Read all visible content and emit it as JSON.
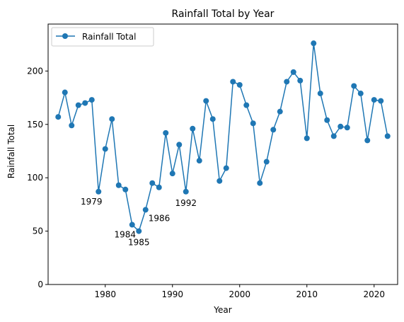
{
  "chart_data": {
    "type": "line",
    "title": "Rainfall Total by Year",
    "xlabel": "Year",
    "ylabel": "Rainfall Total",
    "xlim": [
      1971.5,
      2023.5
    ],
    "ylim": [
      0,
      244
    ],
    "xticks": [
      1980,
      1990,
      2000,
      2010,
      2020
    ],
    "yticks": [
      0,
      50,
      100,
      150,
      200
    ],
    "grid": false,
    "legend_position": "top-left",
    "series": [
      {
        "name": "Rainfall Total",
        "color": "#1f77b4",
        "marker": "circle",
        "points": [
          {
            "x": 1973,
            "y": 157
          },
          {
            "x": 1974,
            "y": 180
          },
          {
            "x": 1975,
            "y": 149
          },
          {
            "x": 1976,
            "y": 168
          },
          {
            "x": 1977,
            "y": 170
          },
          {
            "x": 1978,
            "y": 173
          },
          {
            "x": 1979,
            "y": 87
          },
          {
            "x": 1980,
            "y": 127
          },
          {
            "x": 1981,
            "y": 155
          },
          {
            "x": 1982,
            "y": 93
          },
          {
            "x": 1983,
            "y": 89
          },
          {
            "x": 1984,
            "y": 56
          },
          {
            "x": 1985,
            "y": 50
          },
          {
            "x": 1986,
            "y": 70
          },
          {
            "x": 1987,
            "y": 95
          },
          {
            "x": 1988,
            "y": 91
          },
          {
            "x": 1989,
            "y": 142
          },
          {
            "x": 1990,
            "y": 104
          },
          {
            "x": 1991,
            "y": 131
          },
          {
            "x": 1992,
            "y": 87
          },
          {
            "x": 1993,
            "y": 146
          },
          {
            "x": 1994,
            "y": 116
          },
          {
            "x": 1995,
            "y": 172
          },
          {
            "x": 1996,
            "y": 155
          },
          {
            "x": 1997,
            "y": 97
          },
          {
            "x": 1998,
            "y": 109
          },
          {
            "x": 1999,
            "y": 190
          },
          {
            "x": 2000,
            "y": 187
          },
          {
            "x": 2001,
            "y": 168
          },
          {
            "x": 2002,
            "y": 151
          },
          {
            "x": 2003,
            "y": 95
          },
          {
            "x": 2004,
            "y": 115
          },
          {
            "x": 2005,
            "y": 145
          },
          {
            "x": 2006,
            "y": 162
          },
          {
            "x": 2007,
            "y": 190
          },
          {
            "x": 2008,
            "y": 199
          },
          {
            "x": 2009,
            "y": 191
          },
          {
            "x": 2010,
            "y": 137
          },
          {
            "x": 2011,
            "y": 226
          },
          {
            "x": 2012,
            "y": 179
          },
          {
            "x": 2013,
            "y": 154
          },
          {
            "x": 2014,
            "y": 139
          },
          {
            "x": 2015,
            "y": 148
          },
          {
            "x": 2016,
            "y": 147
          },
          {
            "x": 2017,
            "y": 186
          },
          {
            "x": 2018,
            "y": 179
          },
          {
            "x": 2019,
            "y": 135
          },
          {
            "x": 2020,
            "y": 173
          },
          {
            "x": 2021,
            "y": 172
          },
          {
            "x": 2022,
            "y": 139
          }
        ]
      }
    ],
    "annotations": [
      {
        "text": "1979",
        "x": 1979,
        "y": 87,
        "placement": "below-left"
      },
      {
        "text": "1984",
        "x": 1984,
        "y": 56,
        "placement": "below-left"
      },
      {
        "text": "1985",
        "x": 1985,
        "y": 50,
        "placement": "below"
      },
      {
        "text": "1986",
        "x": 1986,
        "y": 70,
        "placement": "below-right"
      },
      {
        "text": "1992",
        "x": 1992,
        "y": 87,
        "placement": "below"
      }
    ]
  }
}
